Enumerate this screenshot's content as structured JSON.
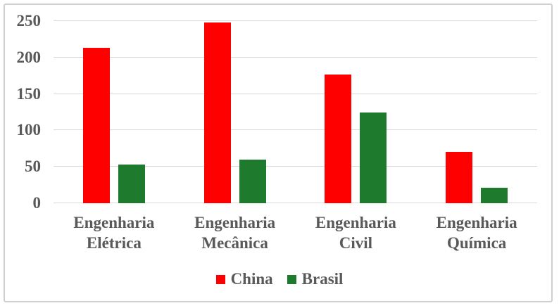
{
  "chart_data": {
    "type": "bar",
    "title": "",
    "xlabel": "",
    "ylabel": "",
    "categories": [
      "Engenharia Elétrica",
      "Engenharia Mecânica",
      "Engenharia Civil",
      "Engenharia Química"
    ],
    "series": [
      {
        "name": "China",
        "color": "#FF0000",
        "values": [
          213,
          248,
          177,
          70
        ]
      },
      {
        "name": "Brasil",
        "color": "#1E7B2D",
        "values": [
          53,
          60,
          125,
          21
        ]
      }
    ],
    "ylim": [
      0,
      250
    ],
    "yticks": [
      0,
      50,
      100,
      150,
      200,
      250
    ],
    "grid": true,
    "legend_position": "bottom"
  },
  "style": {
    "background": "#FFFFFF",
    "frame_border_color": "#CFCFCF",
    "gridline_color": "#D9D9D9",
    "axis_text_color": "#595959",
    "china_color": "#FF0000",
    "brasil_color": "#1E7B2D"
  }
}
